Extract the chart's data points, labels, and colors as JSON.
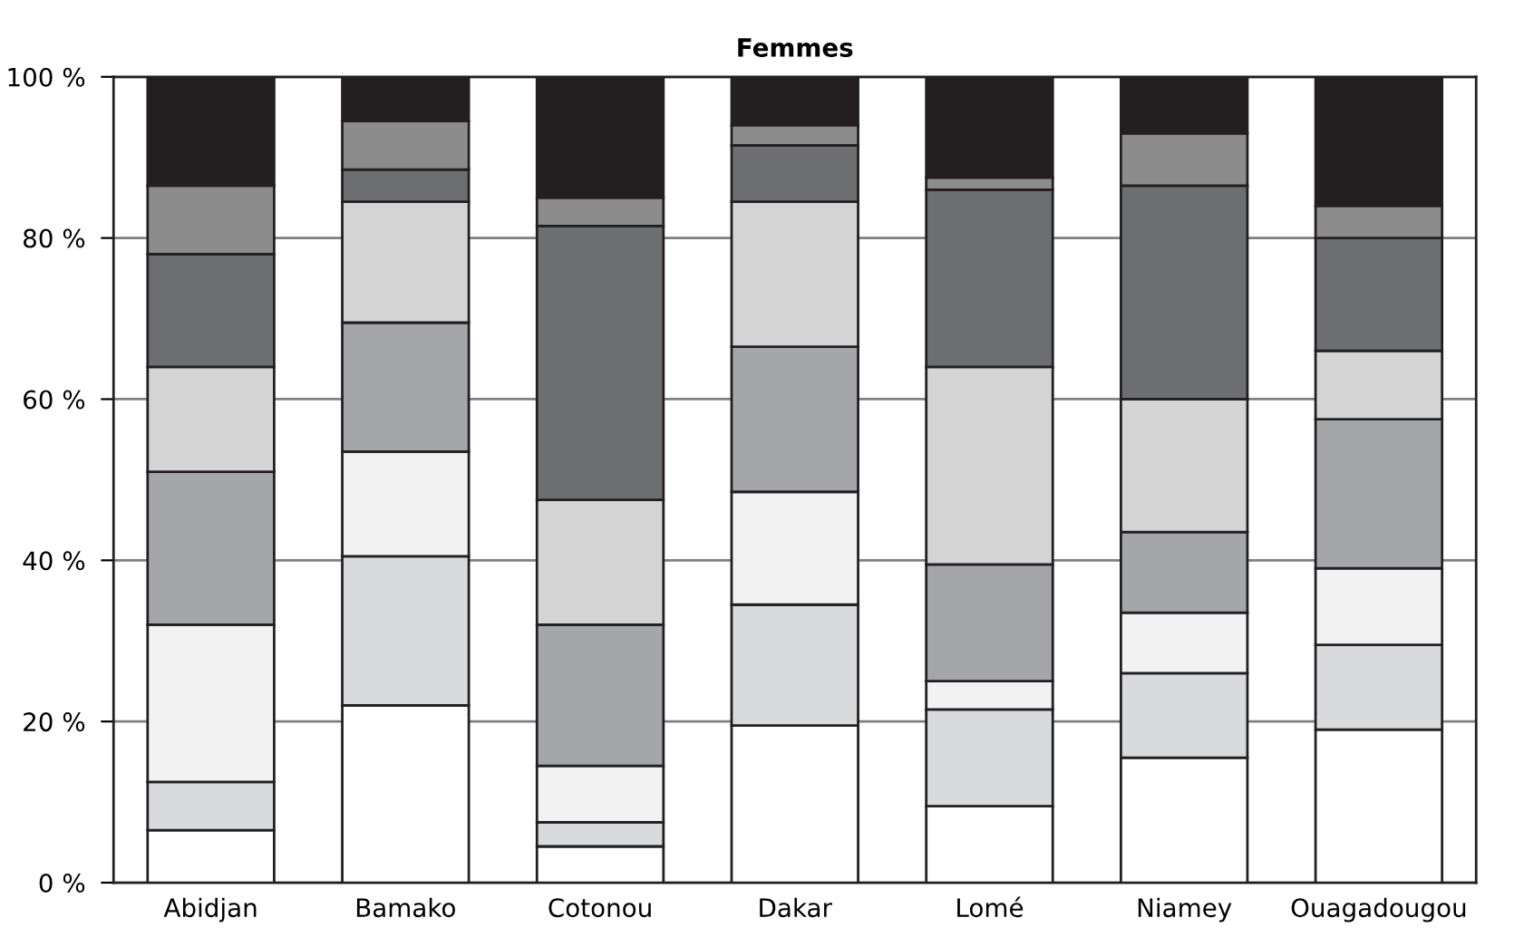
{
  "chart_data": {
    "type": "bar",
    "title": "Femmes",
    "stacked": true,
    "categories": [
      "Abidjan",
      "Bamako",
      "Cotonou",
      "Dakar",
      "Lomé",
      "Niamey",
      "Ouagadougou"
    ],
    "series": [
      {
        "color": "#ffffff",
        "values": [
          6.5,
          22,
          4.5,
          19.5,
          9.5,
          15.5,
          19
        ]
      },
      {
        "color": "#d9dadc",
        "values": [
          6,
          18.5,
          3,
          15,
          12,
          10.5,
          10.5
        ]
      },
      {
        "color": "#f2f2f2",
        "values": [
          19.5,
          13,
          7,
          14,
          3.5,
          7.5,
          9.5
        ]
      },
      {
        "color": "#a5a6a9",
        "values": [
          19,
          16,
          17.5,
          18,
          14.5,
          10,
          18.5
        ]
      },
      {
        "color": "#d4d4d4",
        "values": [
          13,
          15,
          15.5,
          18,
          24.5,
          16.5,
          8.5
        ]
      },
      {
        "color": "#6d6e70",
        "values": [
          14,
          4,
          34,
          7,
          22,
          26.5,
          14
        ]
      },
      {
        "color": "#8c8c8c",
        "values": [
          8.5,
          6,
          3.5,
          2.5,
          1.5,
          6.5,
          4
        ]
      },
      {
        "color": "#231f20",
        "values": [
          13.5,
          5.5,
          15,
          6,
          12.5,
          7,
          16
        ]
      }
    ],
    "ylim": [
      0,
      100
    ],
    "yticks": [
      {
        "value": 0,
        "label": "0 %"
      },
      {
        "value": 20,
        "label": "20 %"
      },
      {
        "value": 40,
        "label": "40 %"
      },
      {
        "value": 60,
        "label": "60 %"
      },
      {
        "value": 80,
        "label": "80 %"
      },
      {
        "value": 100,
        "label": "100 %"
      }
    ],
    "grid": "y",
    "legend": false
  }
}
